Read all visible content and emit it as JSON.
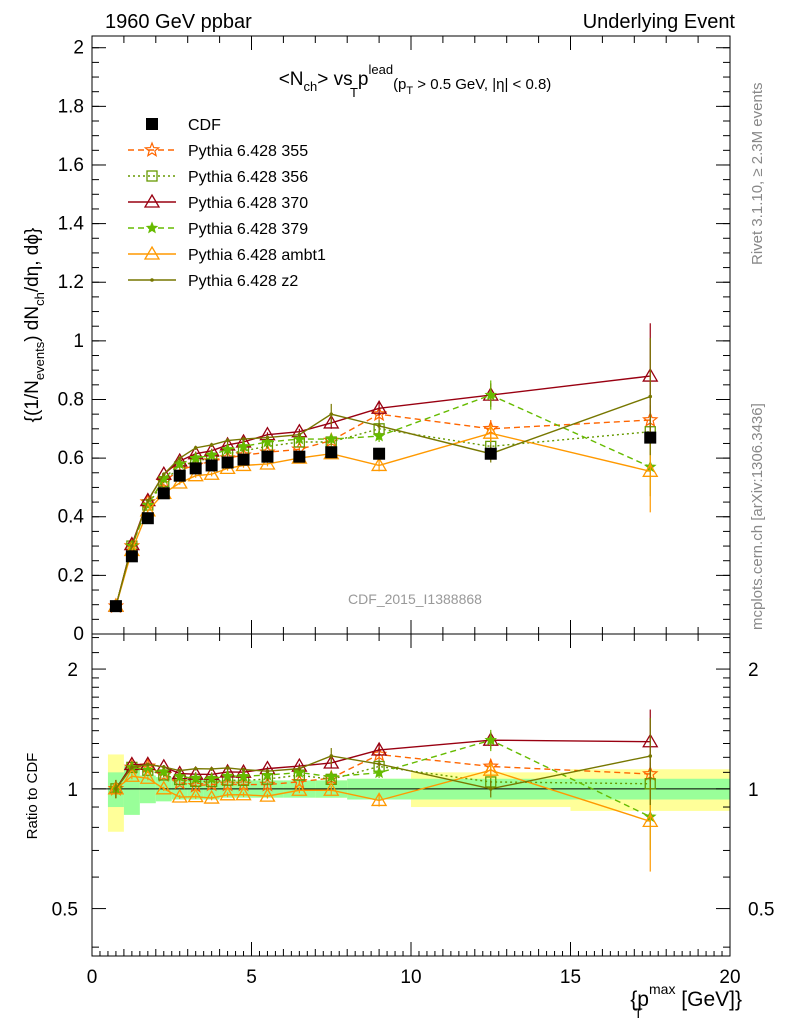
{
  "header": {
    "left": "1960 GeV ppbar",
    "right": "Underlying Event"
  },
  "side_text": {
    "rivet": "Rivet 3.1.10, ≥ 2.3M events",
    "mcplots": "mcplots.cern.ch [arXiv:1306.3436]"
  },
  "watermark": "CDF_2015_I1388868",
  "chart_data": {
    "type": "line",
    "title": "<N_ch> vs p_T^lead (p_T > 0.5 GeV, |η| < 0.8)",
    "title_parts": {
      "main": "<N",
      "sub_ch": "ch",
      "vs": "> vs p",
      "sup_lead": "lead",
      "sub_T": "T",
      "cuts": "(p",
      "cuts_sub": "T",
      "cuts_rest": " > 0.5 GeV, |η| < 0.8)"
    },
    "ylabel": "{(1/N_events) dN_ch/dη, dϕ}",
    "ylabel_parts": {
      "a": "{(1/N",
      "b": "events",
      "c": ") dN",
      "d": "ch",
      "e": "/dη, dϕ}"
    },
    "xlabel": "{p_T^max [GeV]}",
    "xlabel_parts": {
      "a": "{p",
      "sub": "T",
      "sup": "max",
      "b": " [GeV]}"
    },
    "ratio_ylabel": "Ratio to CDF",
    "xlim": [
      0,
      20
    ],
    "ylim": [
      0,
      2.04
    ],
    "ratio_ylim": [
      0.38,
      2.45
    ],
    "x_ticks": [
      "0",
      "5",
      "10",
      "15",
      "20"
    ],
    "x_tick_values": [
      0,
      5,
      10,
      15,
      20
    ],
    "y_ticks": [
      "0",
      "0.2",
      "0.4",
      "0.6",
      "0.8",
      "1",
      "1.2",
      "1.4",
      "1.6",
      "1.8",
      "2"
    ],
    "y_tick_values": [
      0,
      0.2,
      0.4,
      0.6,
      0.8,
      1.0,
      1.2,
      1.4,
      1.6,
      1.8,
      2.0
    ],
    "ratio_ticks": [
      "0.5",
      "1",
      "2"
    ],
    "ratio_tick_values": [
      0.5,
      1,
      2
    ],
    "legend_position": "top-left",
    "x": [
      0.75,
      1.25,
      1.75,
      2.25,
      2.75,
      3.25,
      3.75,
      4.25,
      4.75,
      5.5,
      6.5,
      7.5,
      9.0,
      12.5,
      17.5
    ],
    "x_bin_edges": [
      0.5,
      1.0,
      1.5,
      2.0,
      2.5,
      3.0,
      3.5,
      4.0,
      4.5,
      5.0,
      6.0,
      7.0,
      8.0,
      10.0,
      15.0,
      20.0
    ],
    "data": {
      "name": "CDF",
      "values": [
        0.095,
        0.265,
        0.395,
        0.48,
        0.54,
        0.565,
        0.575,
        0.585,
        0.595,
        0.605,
        0.605,
        0.62,
        0.615,
        0.615,
        0.67
      ],
      "stat_band": [
        0.1,
        0.14,
        0.08,
        0.07,
        0.06,
        0.06,
        0.06,
        0.05,
        0.05,
        0.05,
        0.05,
        0.05,
        0.06,
        0.06,
        0.06
      ],
      "total_band": [
        0.22,
        0.06,
        0.04,
        0.03,
        0.03,
        0.03,
        0.03,
        0.03,
        0.03,
        0.03,
        0.04,
        0.05,
        0.06,
        0.1,
        0.12
      ]
    },
    "series": [
      {
        "name": "Pythia 6.428 355",
        "color": "#ff6600",
        "dash": "6,4",
        "marker": "star-open",
        "values": [
          0.095,
          0.3,
          0.45,
          0.52,
          0.56,
          0.575,
          0.59,
          0.6,
          0.61,
          0.62,
          0.63,
          0.66,
          0.75,
          0.7,
          0.73
        ],
        "errors": [
          0.005,
          0.005,
          0.005,
          0.006,
          0.006,
          0.007,
          0.007,
          0.008,
          0.008,
          0.008,
          0.01,
          0.015,
          0.02,
          0.03,
          0.05
        ]
      },
      {
        "name": "Pythia 6.428 356",
        "color": "#669900",
        "dash": "2,3",
        "marker": "square-open",
        "values": [
          0.095,
          0.3,
          0.44,
          0.52,
          0.57,
          0.59,
          0.6,
          0.615,
          0.625,
          0.64,
          0.655,
          0.655,
          0.7,
          0.64,
          0.69
        ],
        "errors": [
          0.005,
          0.005,
          0.005,
          0.006,
          0.006,
          0.007,
          0.007,
          0.008,
          0.008,
          0.008,
          0.01,
          0.015,
          0.02,
          0.03,
          0.05
        ]
      },
      {
        "name": "Pythia 6.428 370",
        "color": "#990011",
        "dash": "",
        "marker": "triangle-open",
        "values": [
          0.095,
          0.305,
          0.455,
          0.545,
          0.59,
          0.615,
          0.625,
          0.645,
          0.655,
          0.68,
          0.69,
          0.72,
          0.77,
          0.815,
          0.88
        ],
        "errors": [
          0.005,
          0.005,
          0.005,
          0.006,
          0.006,
          0.007,
          0.007,
          0.008,
          0.008,
          0.008,
          0.01,
          0.02,
          0.025,
          0.04,
          0.18
        ]
      },
      {
        "name": "Pythia 6.428 379",
        "color": "#66bb00",
        "dash": "6,4",
        "marker": "star-filled",
        "values": [
          0.095,
          0.3,
          0.44,
          0.53,
          0.58,
          0.6,
          0.61,
          0.63,
          0.64,
          0.655,
          0.665,
          0.665,
          0.675,
          0.815,
          0.57
        ],
        "errors": [
          0.005,
          0.005,
          0.005,
          0.006,
          0.006,
          0.007,
          0.007,
          0.008,
          0.008,
          0.008,
          0.01,
          0.015,
          0.02,
          0.05,
          0.1
        ]
      },
      {
        "name": "Pythia 6.428 ambt1",
        "color": "#ff9900",
        "dash": "",
        "marker": "triangle-open",
        "values": [
          0.095,
          0.285,
          0.42,
          0.48,
          0.515,
          0.54,
          0.545,
          0.565,
          0.575,
          0.58,
          0.6,
          0.615,
          0.575,
          0.685,
          0.555
        ],
        "errors": [
          0.005,
          0.005,
          0.005,
          0.006,
          0.006,
          0.007,
          0.007,
          0.008,
          0.008,
          0.008,
          0.01,
          0.015,
          0.02,
          0.03,
          0.14
        ]
      },
      {
        "name": "Pythia 6.428 z2",
        "color": "#777700",
        "dash": "",
        "marker": "dot",
        "values": [
          0.095,
          0.3,
          0.455,
          0.545,
          0.6,
          0.635,
          0.645,
          0.66,
          0.665,
          0.67,
          0.68,
          0.75,
          0.71,
          0.615,
          0.81
        ],
        "errors": [
          0.005,
          0.005,
          0.005,
          0.006,
          0.006,
          0.007,
          0.007,
          0.008,
          0.008,
          0.008,
          0.01,
          0.035,
          0.02,
          0.03,
          0.2
        ]
      }
    ]
  }
}
